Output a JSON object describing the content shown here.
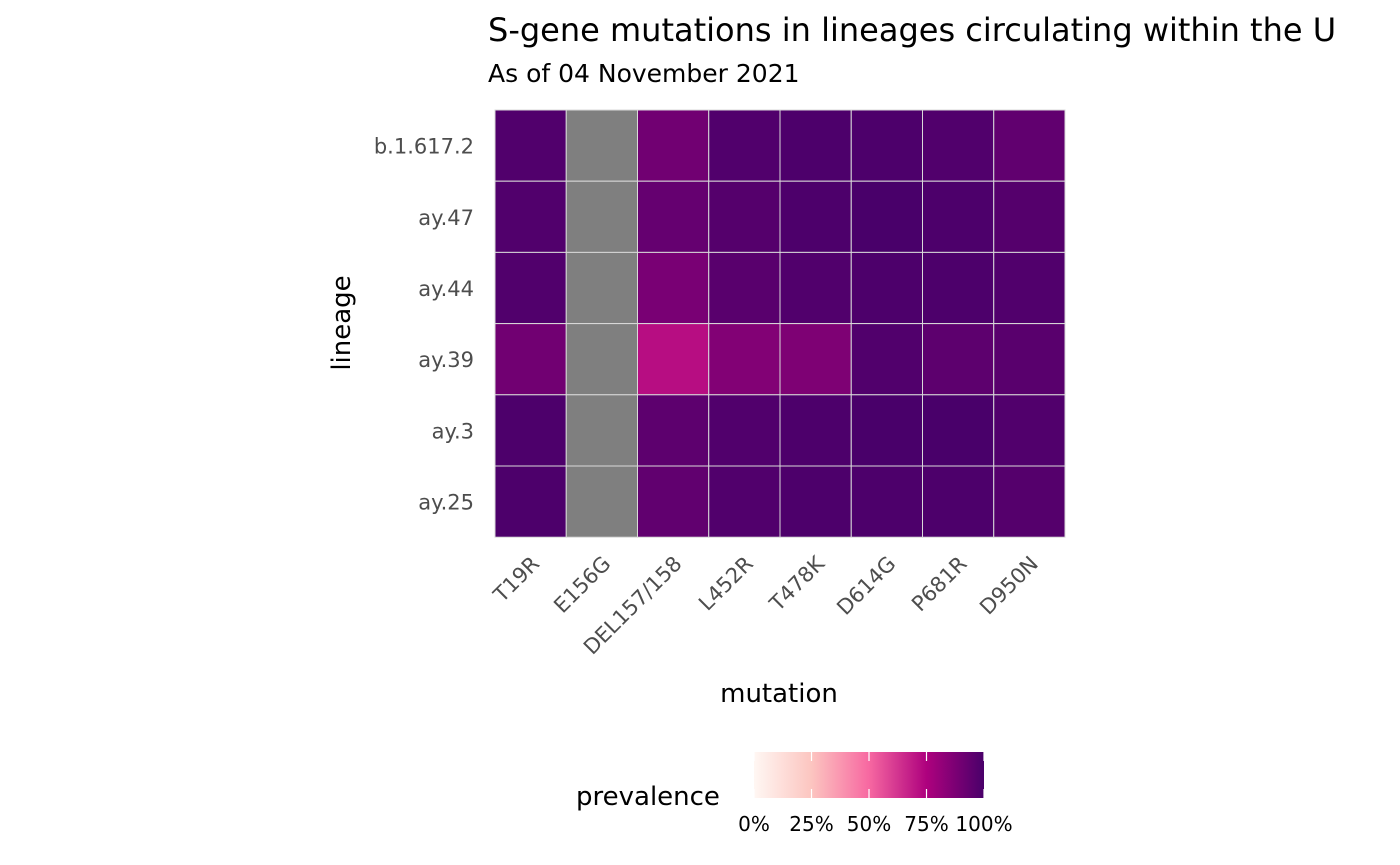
{
  "chart_data": {
    "type": "heatmap",
    "title": "S-gene mutations in lineages circulating within the U",
    "subtitle": "As of 04 November 2021",
    "xlabel": "mutation",
    "ylabel": "lineage",
    "x_categories": [
      "T19R",
      "E156G",
      "DEL157/158",
      "L452R",
      "T478K",
      "D614G",
      "P681R",
      "D950N"
    ],
    "y_categories": [
      "b.1.617.2",
      "ay.47",
      "ay.44",
      "ay.39",
      "ay.3",
      "ay.25"
    ],
    "values": [
      [
        0.98,
        null,
        0.9,
        0.98,
        0.99,
        0.99,
        0.98,
        0.94
      ],
      [
        0.98,
        null,
        0.93,
        0.97,
        0.99,
        1.0,
        0.99,
        0.97
      ],
      [
        0.98,
        null,
        0.88,
        0.96,
        0.98,
        0.99,
        0.99,
        0.98
      ],
      [
        0.9,
        null,
        0.72,
        0.86,
        0.87,
        0.98,
        0.95,
        0.96
      ],
      [
        0.99,
        null,
        0.95,
        0.98,
        0.99,
        1.0,
        1.0,
        0.98
      ],
      [
        0.99,
        null,
        0.94,
        0.98,
        0.99,
        0.99,
        0.99,
        0.97
      ]
    ],
    "missing_color": "#7f7f7f",
    "color_scale": [
      "#fff7f3",
      "#fcc5c0",
      "#f768a1",
      "#ae017e",
      "#49006a"
    ],
    "legend": {
      "title": "prevalence",
      "position": "bottom",
      "range": [
        0,
        1
      ],
      "ticks": [
        0,
        0.25,
        0.5,
        0.75,
        1
      ],
      "tick_labels": [
        "0%",
        "25%",
        "50%",
        "75%",
        "100%"
      ]
    },
    "grid": false
  }
}
